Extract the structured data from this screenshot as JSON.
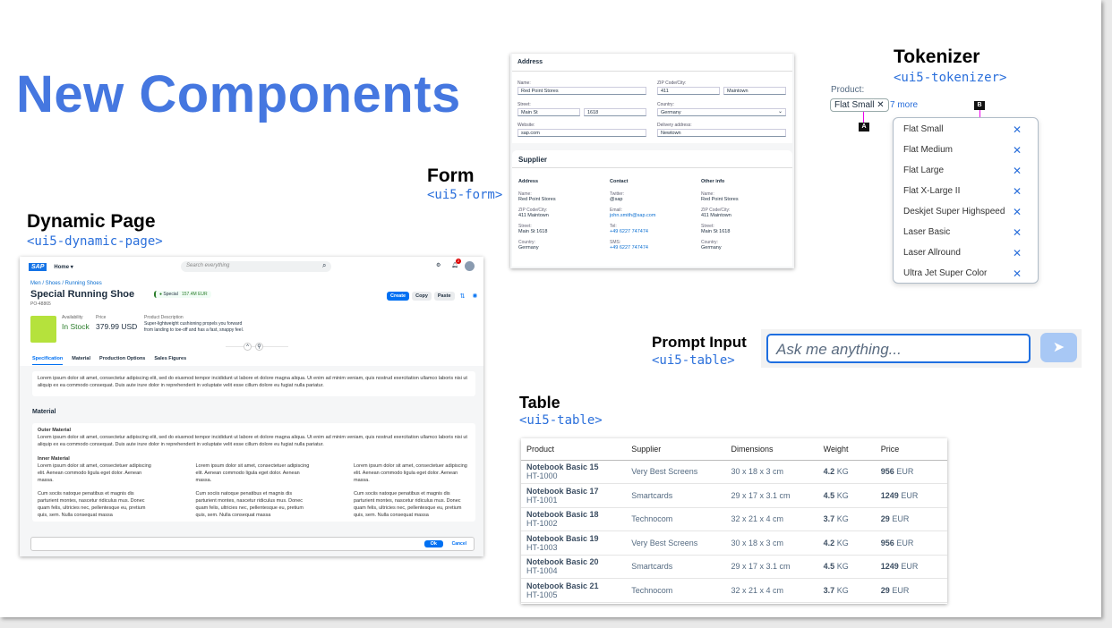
{
  "slide": {
    "title": "New Components"
  },
  "sections": {
    "dynamic_page": {
      "label": "Dynamic Page",
      "tag": "<ui5-dynamic-page>"
    },
    "form": {
      "label": "Form",
      "tag": "<ui5-form>"
    },
    "tokenizer": {
      "label": "Tokenizer",
      "tag": "<ui5-tokenizer>"
    },
    "prompt_input": {
      "label": "Prompt Input",
      "tag": "<ui5-table>"
    },
    "table": {
      "label": "Table",
      "tag": "<ui5-table>"
    }
  },
  "dynamic_page": {
    "logo": "SAP",
    "home": "Home ▾",
    "search_placeholder": "Search everything",
    "notif_count": "2",
    "breadcrumb": "Men / Shoes / Running Shoes",
    "title": "Special Running Shoe",
    "status": "Special",
    "amount": "157.4M EUR",
    "subtitle": "PO-48865",
    "actions": {
      "create": "Create",
      "copy": "Copy",
      "paste": "Paste"
    },
    "availability_label": "Availability",
    "availability": "In Stock",
    "price_label": "Price",
    "price": "379.99 USD",
    "desc_label": "Product Description",
    "desc": "Super-lightweight cushioning propels you forward from landing to toe-off and has a fast, snappy feel.",
    "tabs": [
      "Specification",
      "Material",
      "Production Options",
      "Sales Figures"
    ],
    "lorem": "Lorem ipsum dolor sit amet, consectetur adipiscing elit, sed do eiusmod tempor incididunt ut labore et dolore magna aliqua. Ut enim ad minim veniam, quis nostrud exercitation ullamco laboris nisi ut aliquip ex ea commodo consequat. Duis aute irure dolor in reprehenderit in voluptate velit esse cillum dolore eu fugiat nulla pariatur.",
    "material_title": "Material",
    "outer_title": "Outer Material",
    "inner_title": "Inner Material",
    "inner_p1": "Lorem ipsum dolor sit amet, consectetuer adipiscing elit. Aenean commodo ligula eget dolor. Aenean massa.",
    "inner_p2": "Cum sociis natoque penatibus et magnis dis parturient montes, nascetur ridiculus mus. Donec quam felis, ultricies nec, pellentesque eu, pretium quis, sem. Nulla consequat massa",
    "ok": "Ok",
    "cancel": "Cancel"
  },
  "form": {
    "address_title": "Address",
    "name_label": "Name:",
    "name": "Red Point Stores",
    "zip_label": "ZIP Code/City:",
    "zip": "411",
    "city": "Maintown",
    "street_label": "Street:",
    "street": "Main St",
    "number": "1618",
    "country_label": "Country:",
    "country": "Germany",
    "website_label": "Website:",
    "website": "sap.com",
    "delivery_label": "Delivery address:",
    "delivery": "Newtown",
    "supplier_title": "Supplier",
    "columns": [
      {
        "title": "Address",
        "fields": [
          [
            "Name:",
            "Red Point Stores"
          ],
          [
            "ZIP Code/City:",
            "411 Maintown"
          ],
          [
            "Street:",
            "Main St 1618"
          ],
          [
            "Country:",
            "Germany"
          ]
        ]
      },
      {
        "title": "Contact",
        "fields": [
          [
            "Twitter:",
            "@sap"
          ],
          [
            "Email:",
            "john.smith@sap.com"
          ],
          [
            "Tel:",
            "+49 6227 747474"
          ],
          [
            "SMS:",
            "+49 6227 747474"
          ]
        ]
      },
      {
        "title": "Other info",
        "fields": [
          [
            "Name:",
            "Red Point Stores"
          ],
          [
            "ZIP Code/City:",
            "411 Maintown"
          ],
          [
            "Street:",
            "Main St 1618"
          ],
          [
            "Country:",
            "Germany"
          ]
        ]
      }
    ]
  },
  "tokenizer": {
    "label": "Product:",
    "token": "Flat Small",
    "more": "7 more",
    "marker_a": "A",
    "marker_b": "B",
    "items": [
      "Flat Small",
      "Flat Medium",
      "Flat Large",
      "Flat X-Large II",
      "Deskjet Super Highspeed",
      "Laser Basic",
      "Laser Allround",
      "Ultra Jet Super Color"
    ]
  },
  "prompt_input": {
    "placeholder": "Ask me anything..."
  },
  "table": {
    "headers": [
      "Product",
      "Supplier",
      "Dimensions",
      "Weight",
      "Price"
    ],
    "rows": [
      {
        "name": "Notebook Basic 15",
        "id": "HT-1000",
        "supplier": "Very Best Screens",
        "dim": "30 x 18 x 3 cm",
        "weight": "4.2",
        "wunit": "KG",
        "price": "956",
        "cur": "EUR"
      },
      {
        "name": "Notebook Basic 17",
        "id": "HT-1001",
        "supplier": "Smartcards",
        "dim": "29 x 17 x 3.1 cm",
        "weight": "4.5",
        "wunit": "KG",
        "price": "1249",
        "cur": "EUR"
      },
      {
        "name": "Notebook Basic 18",
        "id": "HT-1002",
        "supplier": "Technocom",
        "dim": "32 x 21 x 4 cm",
        "weight": "3.7",
        "wunit": "KG",
        "price": "29",
        "cur": "EUR"
      },
      {
        "name": "Notebook Basic 19",
        "id": "HT-1003",
        "supplier": "Very Best Screens",
        "dim": "30 x 18 x 3 cm",
        "weight": "4.2",
        "wunit": "KG",
        "price": "956",
        "cur": "EUR"
      },
      {
        "name": "Notebook Basic 20",
        "id": "HT-1004",
        "supplier": "Smartcards",
        "dim": "29 x 17 x 3.1 cm",
        "weight": "4.5",
        "wunit": "KG",
        "price": "1249",
        "cur": "EUR"
      },
      {
        "name": "Notebook Basic 21",
        "id": "HT-1005",
        "supplier": "Technocom",
        "dim": "32 x 21 x 4 cm",
        "weight": "3.7",
        "wunit": "KG",
        "price": "29",
        "cur": "EUR"
      }
    ]
  },
  "colors": {
    "accent": "#4577e0",
    "tag": "#2a6fdb",
    "sap_blue": "#0070f2",
    "positive": "#2b7d2b"
  }
}
